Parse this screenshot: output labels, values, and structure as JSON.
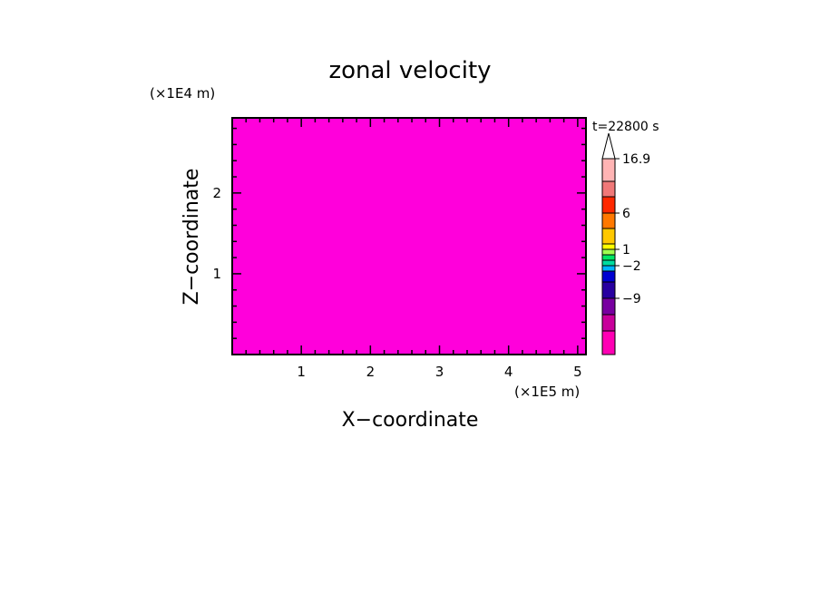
{
  "chart_data": {
    "type": "heatmap",
    "title": "zonal velocity",
    "xlabel": "X−coordinate",
    "ylabel": "Z−coordinate",
    "x_unit": "(×1E5 m)",
    "y_unit": "(×1E4 m)",
    "time_label": "t=22800 s",
    "x_range": [
      0,
      5.12
    ],
    "y_range": [
      0,
      2.93
    ],
    "x_ticks": [
      1,
      2,
      3,
      4,
      5
    ],
    "y_ticks": [
      1,
      2
    ],
    "x_tick_labels": [
      "1",
      "2",
      "3",
      "4",
      "5"
    ],
    "y_tick_labels": [
      "1",
      "2"
    ],
    "colorbar": {
      "levels": [
        -15,
        -12,
        -9,
        -6,
        -4,
        -2,
        -1,
        0,
        1,
        2,
        4,
        6,
        9,
        12,
        16.9
      ],
      "colors": [
        "#ff00b4",
        "#c8009b",
        "#7800a0",
        "#2800a0",
        "#0000d2",
        "#00b4ff",
        "#00dca0",
        "#00e664",
        "#a0ff50",
        "#ffff00",
        "#ffc800",
        "#ff7800",
        "#ff2800",
        "#f07878",
        "#ffb4b4",
        "#ffffff"
      ],
      "labeled_levels": [
        16.9,
        6,
        1,
        -2,
        -9
      ],
      "labels": [
        "16.9",
        "6",
        "1",
        "−2",
        "−9"
      ],
      "extend": "max"
    },
    "grid": false
  }
}
